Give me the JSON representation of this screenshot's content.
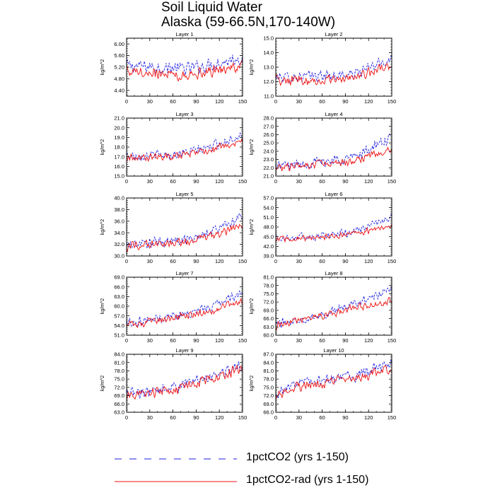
{
  "title_line1": "Soil Liquid Water",
  "title_line2": "Alaska (59-66.5N,170-140W)",
  "ylabel": "kg/m^2",
  "colors": {
    "series1": "#1f1fe0",
    "series2": "#ee1111",
    "axis": "#000000"
  },
  "legend": [
    {
      "label": "1pctCO2 (yrs 1-150)",
      "style": "dashed",
      "color": "#1f1fe0"
    },
    {
      "label": "1pctCO2-rad (yrs 1-150)",
      "style": "solid",
      "color": "#ee1111"
    }
  ],
  "chart_data": [
    {
      "type": "line",
      "title": "Layer 1",
      "ylabel": "kg/m^2",
      "xlim": [
        0,
        150
      ],
      "xticks": [
        0,
        30,
        60,
        90,
        120,
        150
      ],
      "ylim": [
        4.2,
        6.2
      ],
      "yticks": [
        "4.40",
        "4.80",
        "5.20",
        "5.60",
        "6.00"
      ],
      "series": [
        {
          "name": "1pctCO2 (yrs 1-150)",
          "trend": [
            [
              0,
              5.25
            ],
            [
              40,
              5.2
            ],
            [
              80,
              5.15
            ],
            [
              120,
              5.35
            ],
            [
              150,
              5.55
            ]
          ],
          "noise": 0.28
        },
        {
          "name": "1pctCO2-rad (yrs 1-150)",
          "trend": [
            [
              0,
              5.1
            ],
            [
              40,
              5.0
            ],
            [
              80,
              4.95
            ],
            [
              120,
              5.1
            ],
            [
              150,
              5.25
            ]
          ],
          "noise": 0.25
        }
      ]
    },
    {
      "type": "line",
      "title": "Layer 2",
      "ylabel": "kg/m^2",
      "xlim": [
        0,
        150
      ],
      "xticks": [
        0,
        30,
        60,
        90,
        120,
        150
      ],
      "ylim": [
        11.0,
        15.0
      ],
      "yticks": [
        "11.0",
        "12.0",
        "13.0",
        "14.0",
        "15.0"
      ],
      "series": [
        {
          "name": "1pctCO2 (yrs 1-150)",
          "trend": [
            [
              0,
              12.3
            ],
            [
              60,
              12.4
            ],
            [
              100,
              12.5
            ],
            [
              150,
              13.6
            ]
          ],
          "noise": 0.45
        },
        {
          "name": "1pctCO2-rad (yrs 1-150)",
          "trend": [
            [
              0,
              12.1
            ],
            [
              60,
              12.1
            ],
            [
              100,
              12.3
            ],
            [
              150,
              13.1
            ]
          ],
          "noise": 0.4
        }
      ]
    },
    {
      "type": "line",
      "title": "Layer 3",
      "ylabel": "kg/m^2",
      "xlim": [
        0,
        150
      ],
      "xticks": [
        0,
        30,
        60,
        90,
        120,
        150
      ],
      "ylim": [
        15.0,
        21.0
      ],
      "yticks": [
        "15.0",
        "16.0",
        "17.0",
        "18.0",
        "19.0",
        "20.0",
        "21.0"
      ],
      "series": [
        {
          "name": "1pctCO2 (yrs 1-150)",
          "trend": [
            [
              0,
              17.1
            ],
            [
              60,
              17.2
            ],
            [
              100,
              17.8
            ],
            [
              150,
              19.3
            ]
          ],
          "noise": 0.6
        },
        {
          "name": "1pctCO2-rad (yrs 1-150)",
          "trend": [
            [
              0,
              16.9
            ],
            [
              60,
              17.0
            ],
            [
              100,
              17.5
            ],
            [
              150,
              18.5
            ]
          ],
          "noise": 0.5
        }
      ]
    },
    {
      "type": "line",
      "title": "Layer 4",
      "ylabel": "kg/m^2",
      "xlim": [
        0,
        150
      ],
      "xticks": [
        0,
        30,
        60,
        90,
        120,
        150
      ],
      "ylim": [
        21.0,
        28.0
      ],
      "yticks": [
        "21.0",
        "22.0",
        "23.0",
        "24.0",
        "25.0",
        "26.0",
        "27.0",
        "28.0"
      ],
      "series": [
        {
          "name": "1pctCO2 (yrs 1-150)",
          "trend": [
            [
              0,
              22.2
            ],
            [
              60,
              22.7
            ],
            [
              100,
              23.3
            ],
            [
              150,
              25.6
            ]
          ],
          "noise": 0.8
        },
        {
          "name": "1pctCO2-rad (yrs 1-150)",
          "trend": [
            [
              0,
              22.0
            ],
            [
              60,
              22.4
            ],
            [
              100,
              22.8
            ],
            [
              150,
              24.2
            ]
          ],
          "noise": 0.6
        }
      ]
    },
    {
      "type": "line",
      "title": "Layer 5",
      "ylabel": "kg/m^2",
      "xlim": [
        0,
        150
      ],
      "xticks": [
        0,
        30,
        60,
        90,
        120,
        150
      ],
      "ylim": [
        30.0,
        40.0
      ],
      "yticks": [
        "30.0",
        "32.0",
        "34.0",
        "36.0",
        "38.0",
        "40.0"
      ],
      "series": [
        {
          "name": "1pctCO2 (yrs 1-150)",
          "trend": [
            [
              0,
              31.8
            ],
            [
              60,
              32.6
            ],
            [
              100,
              33.5
            ],
            [
              150,
              37.0
            ]
          ],
          "noise": 1.1
        },
        {
          "name": "1pctCO2-rad (yrs 1-150)",
          "trend": [
            [
              0,
              31.6
            ],
            [
              60,
              32.2
            ],
            [
              100,
              33.0
            ],
            [
              150,
              35.3
            ]
          ],
          "noise": 0.9
        }
      ]
    },
    {
      "type": "line",
      "title": "Layer 6",
      "ylabel": "kg/m^2",
      "xlim": [
        0,
        150
      ],
      "xticks": [
        0,
        30,
        60,
        90,
        120,
        150
      ],
      "ylim": [
        39.0,
        57.0
      ],
      "yticks": [
        "39.0",
        "42.0",
        "45.0",
        "48.0",
        "51.0",
        "54.0",
        "57.0"
      ],
      "series": [
        {
          "name": "1pctCO2 (yrs 1-150)",
          "trend": [
            [
              0,
              44.5
            ],
            [
              60,
              45.2
            ],
            [
              100,
              46.5
            ],
            [
              150,
              51.0
            ]
          ],
          "noise": 1.5
        },
        {
          "name": "1pctCO2-rad (yrs 1-150)",
          "trend": [
            [
              0,
              44.2
            ],
            [
              60,
              44.8
            ],
            [
              100,
              45.8
            ],
            [
              150,
              48.5
            ]
          ],
          "noise": 1.1
        }
      ]
    },
    {
      "type": "line",
      "title": "Layer 7",
      "ylabel": "kg/m^2",
      "xlim": [
        0,
        150
      ],
      "xticks": [
        0,
        30,
        60,
        90,
        120,
        150
      ],
      "ylim": [
        51.0,
        69.0
      ],
      "yticks": [
        "51.0",
        "54.0",
        "57.0",
        "60.0",
        "63.0",
        "66.0",
        "69.0"
      ],
      "series": [
        {
          "name": "1pctCO2 (yrs 1-150)",
          "trend": [
            [
              0,
              54.8
            ],
            [
              60,
              57.0
            ],
            [
              100,
              58.8
            ],
            [
              150,
              64.5
            ]
          ],
          "noise": 1.8
        },
        {
          "name": "1pctCO2-rad (yrs 1-150)",
          "trend": [
            [
              0,
              54.3
            ],
            [
              60,
              56.2
            ],
            [
              100,
              57.8
            ],
            [
              150,
              61.5
            ]
          ],
          "noise": 1.5
        }
      ]
    },
    {
      "type": "line",
      "title": "Layer 8",
      "ylabel": "kg/m^2",
      "xlim": [
        0,
        150
      ],
      "xticks": [
        0,
        30,
        60,
        90,
        120,
        150
      ],
      "ylim": [
        60.0,
        81.0
      ],
      "yticks": [
        "60.0",
        "63.0",
        "66.0",
        "69.0",
        "72.0",
        "75.0",
        "78.0",
        "81.0"
      ],
      "series": [
        {
          "name": "1pctCO2 (yrs 1-150)",
          "trend": [
            [
              0,
              64.0
            ],
            [
              60,
              67.5
            ],
            [
              100,
              71.0
            ],
            [
              150,
              76.5
            ]
          ],
          "noise": 2.0
        },
        {
          "name": "1pctCO2-rad (yrs 1-150)",
          "trend": [
            [
              0,
              63.5
            ],
            [
              60,
              66.8
            ],
            [
              100,
              69.8
            ],
            [
              150,
              72.5
            ]
          ],
          "noise": 1.8
        }
      ]
    },
    {
      "type": "line",
      "title": "Layer 9",
      "ylabel": "kg/m^2",
      "xlim": [
        0,
        150
      ],
      "xticks": [
        0,
        30,
        60,
        90,
        120,
        150
      ],
      "ylim": [
        63.0,
        84.0
      ],
      "yticks": [
        "63.0",
        "66.0",
        "69.0",
        "72.0",
        "75.0",
        "78.0",
        "81.0",
        "84.0"
      ],
      "series": [
        {
          "name": "1pctCO2 (yrs 1-150)",
          "trend": [
            [
              0,
              69.5
            ],
            [
              60,
              72.0
            ],
            [
              100,
              75.5
            ],
            [
              150,
              80.0
            ]
          ],
          "noise": 2.5
        },
        {
          "name": "1pctCO2-rad (yrs 1-150)",
          "trend": [
            [
              0,
              69.0
            ],
            [
              60,
              71.0
            ],
            [
              100,
              74.5
            ],
            [
              150,
              79.0
            ]
          ],
          "noise": 2.2
        }
      ]
    },
    {
      "type": "line",
      "title": "Layer 10",
      "ylabel": "kg/m^2",
      "xlim": [
        0,
        150
      ],
      "xticks": [
        0,
        30,
        60,
        90,
        120,
        150
      ],
      "ylim": [
        66.0,
        87.0
      ],
      "yticks": [
        "66.0",
        "69.0",
        "72.0",
        "75.0",
        "78.0",
        "81.0",
        "84.0",
        "87.0"
      ],
      "series": [
        {
          "name": "1pctCO2 (yrs 1-150)",
          "trend": [
            [
              0,
              72.0
            ],
            [
              30,
              76.5
            ],
            [
              60,
              77.5
            ],
            [
              100,
              79.0
            ],
            [
              150,
              83.5
            ]
          ],
          "noise": 2.6
        },
        {
          "name": "1pctCO2-rad (yrs 1-150)",
          "trend": [
            [
              0,
              71.5
            ],
            [
              30,
              75.5
            ],
            [
              60,
              76.5
            ],
            [
              100,
              78.0
            ],
            [
              150,
              81.5
            ]
          ],
          "noise": 2.3
        }
      ]
    }
  ]
}
